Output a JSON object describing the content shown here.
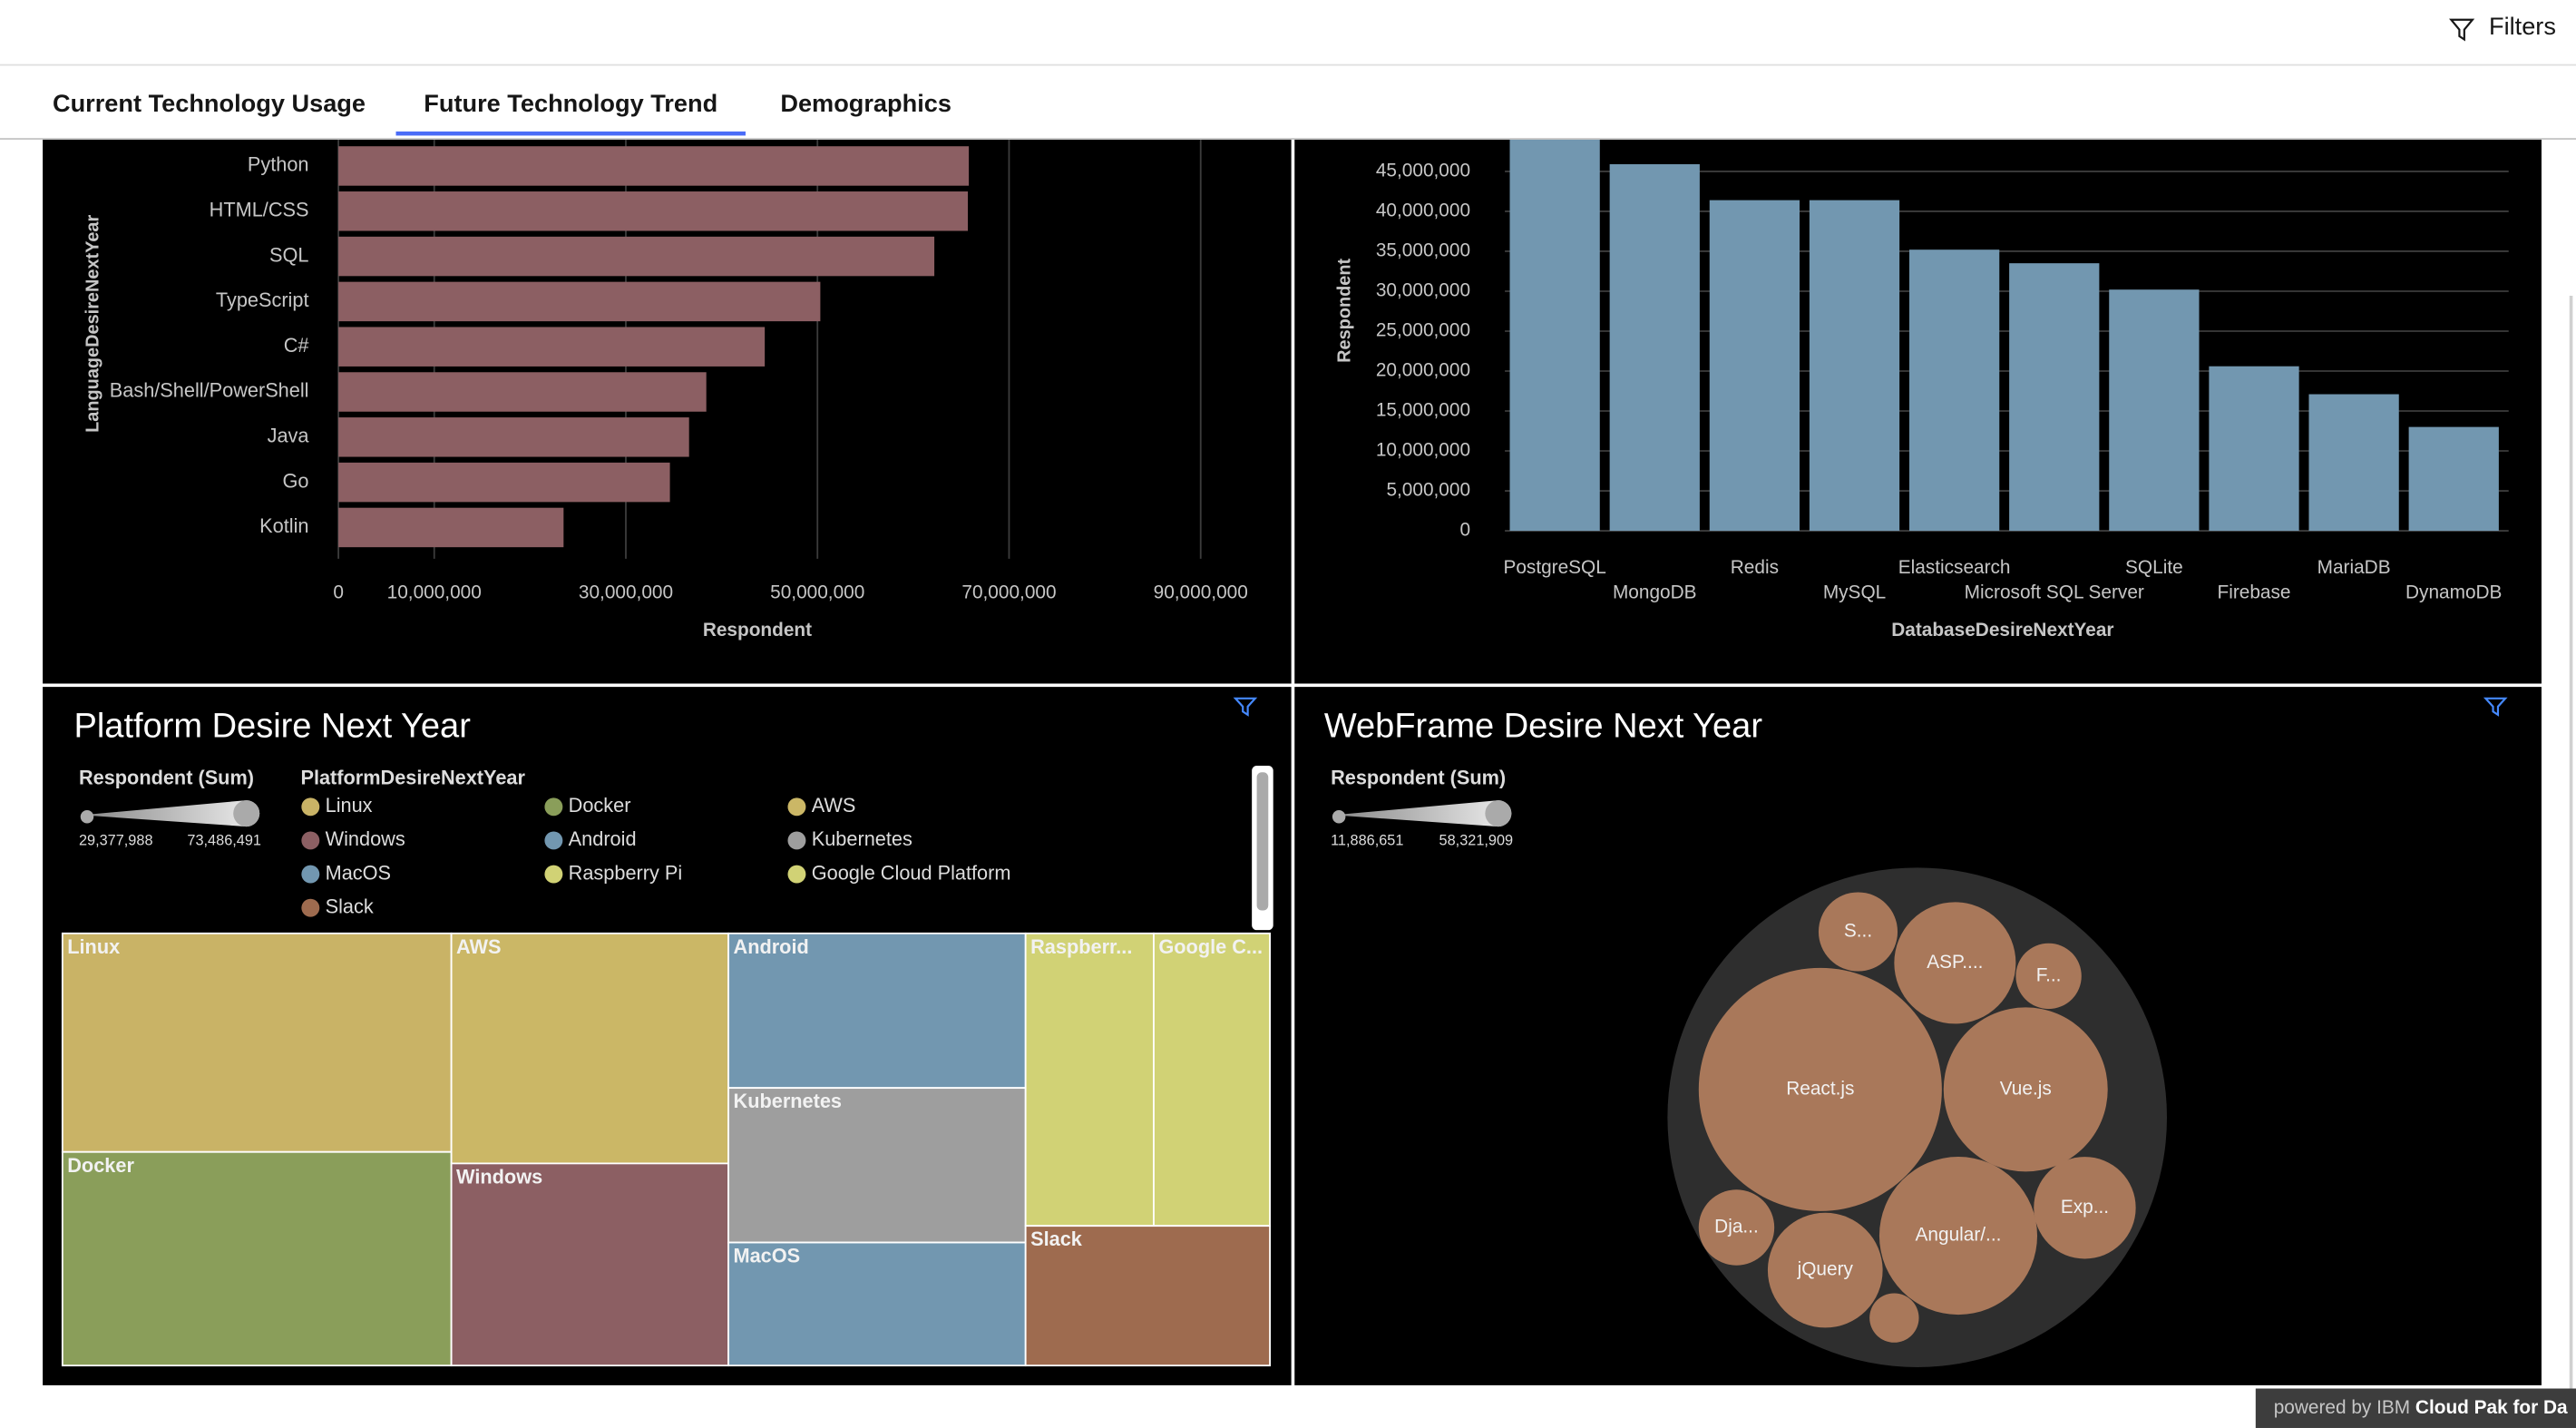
{
  "header": {
    "filters": "Filters"
  },
  "tabs": [
    "Current Technology Usage",
    "Future Technology Trend",
    "Demographics"
  ],
  "active_tab": 1,
  "footer": {
    "prefix": "powered by IBM",
    "product": "Cloud Pak for Da"
  },
  "chart_data": [
    {
      "type": "hbar",
      "x_label": "Respondent",
      "y_label": "LanguageDesireNextYear",
      "categories": [
        "Python",
        "HTML/CSS",
        "SQL",
        "TypeScript",
        "C#",
        "Bash/Shell/PowerShell",
        "Java",
        "Go",
        "Kotlin"
      ],
      "values": [
        65800000,
        65700000,
        62200000,
        50300000,
        44500000,
        38400000,
        36600000,
        34600000,
        23500000
      ],
      "color": "#8c5f63",
      "xlim": [
        0,
        95000000
      ],
      "xticks": [
        0,
        {
          "value": 10000000,
          "label": "10,000,000"
        },
        {
          "value": 30000000,
          "label": "30,000,000"
        },
        {
          "value": 50000000,
          "label": "50,000,000"
        },
        {
          "value": 70000000,
          "label": "70,000,000"
        },
        {
          "value": 90000000,
          "label": "90,000,000"
        }
      ],
      "grid": true
    },
    {
      "type": "bar",
      "x_label": "DatabaseDesireNextYear",
      "y_label": "Respondent",
      "categories": [
        "PostgreSQL",
        "MongoDB",
        "Redis",
        "MySQL",
        "Elasticsearch",
        "Microsoft SQL Server",
        "SQLite",
        "Firebase",
        "MariaDB",
        "DynamoDB"
      ],
      "values": [
        52000000,
        45900000,
        41400000,
        41400000,
        35200000,
        33500000,
        30200000,
        20600000,
        17100000,
        13000000
      ],
      "color": "#7297b0",
      "ylim": [
        0,
        50000000
      ],
      "yticks": [
        0,
        {
          "value": 5000000,
          "label": "5,000,000"
        },
        {
          "value": 10000000,
          "label": "10,000,000"
        },
        {
          "value": 15000000,
          "label": "15,000,000"
        },
        {
          "value": 20000000,
          "label": "20,000,000"
        },
        {
          "value": 25000000,
          "label": "25,000,000"
        },
        {
          "value": 30000000,
          "label": "30,000,000"
        },
        {
          "value": 35000000,
          "label": "35,000,000"
        },
        {
          "value": 40000000,
          "label": "40,000,000"
        },
        {
          "value": 45000000,
          "label": "45,000,000"
        }
      ],
      "grid": true
    },
    {
      "type": "treemap",
      "title": "Platform Desire Next Year",
      "size_label": "Respondent (Sum)",
      "size_range": [
        {
          "value": 29377988,
          "label": "29,377,988"
        },
        {
          "value": 73486491,
          "label": "73,486,491"
        }
      ],
      "legend_title": "PlatformDesireNextYear",
      "categories": [
        "Linux",
        "Docker",
        "AWS",
        "Windows",
        "Android",
        "Kubernetes",
        "MacOS",
        "Raspberry Pi",
        "Google Cloud Platform",
        "Slack"
      ],
      "labels": [
        "Linux",
        "Docker",
        "AWS",
        "Windows",
        "Android",
        "Kubernetes",
        "MacOS",
        "Raspberr...",
        "Google C...",
        "Slack"
      ],
      "values": [
        73486491,
        71800000,
        55100000,
        48400000,
        39700000,
        39700000,
        31600000,
        32400000,
        29377988,
        29500000
      ],
      "colors": [
        "#c9b366",
        "#8a9e5a",
        "#cbb766",
        "#8c5f63",
        "#7297b0",
        "#9e9e9e",
        "#7297b0",
        "#d1d275",
        "#d1d275",
        "#9e6b4f"
      ]
    },
    {
      "type": "bubble",
      "title": "WebFrame Desire Next Year",
      "size_label": "Respondent (Sum)",
      "size_range": [
        {
          "value": 11886651,
          "label": "11,886,651"
        },
        {
          "value": 58321909,
          "label": "58,321,909"
        }
      ],
      "labels": [
        "React.js",
        "Vue.js",
        "Angular/...",
        "ASP....",
        "jQuery",
        "Exp...",
        "S...",
        "Dja...",
        "F...",
        null
      ],
      "values": [
        58321909,
        39400000,
        37900000,
        29200000,
        27600000,
        24500000,
        19000000,
        18200000,
        15800000,
        11886651
      ],
      "color": "#a9785a"
    }
  ]
}
